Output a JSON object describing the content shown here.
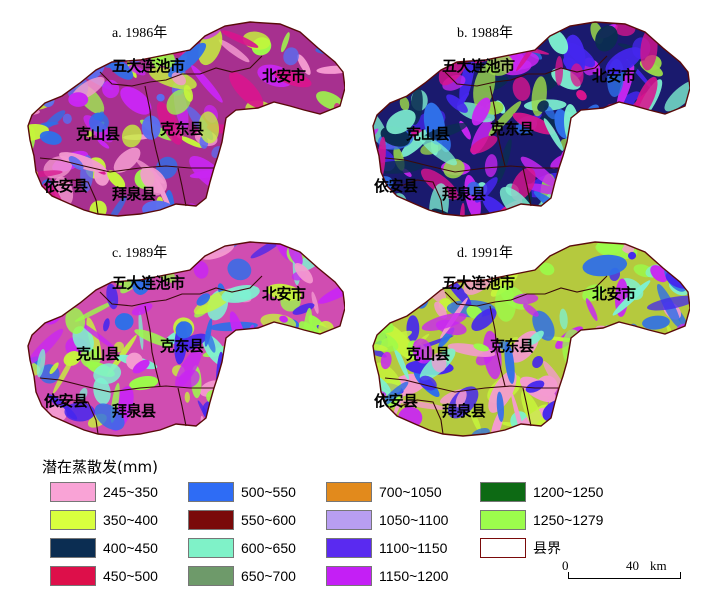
{
  "panels": [
    {
      "title": "a. 1986年",
      "base": "#a7308f",
      "patches": [
        "#5b6df0",
        "#c926f2",
        "#c6f53b",
        "#f49ad0",
        "#2f6fe8",
        "#d8158e",
        "#9dfb4a"
      ]
    },
    {
      "title": "b. 1988年",
      "base": "#1a1a6e",
      "patches": [
        "#0b2d52",
        "#7ef1d0",
        "#c926f2",
        "#4527ee",
        "#2f6fe8",
        "#9bd94a",
        "#d8158e"
      ]
    },
    {
      "title": "c. 1989年",
      "base": "#d04db1",
      "patches": [
        "#f49ad0",
        "#c926f2",
        "#2f6fe8",
        "#c6f53b",
        "#7ef1d0",
        "#9bfb4a",
        "#4527ee"
      ]
    },
    {
      "title": "d. 1991年",
      "base": "#b5c93e",
      "patches": [
        "#c6f53b",
        "#9bfb4a",
        "#c926f2",
        "#4527ee",
        "#2f6fe8",
        "#7ef1d0",
        "#f49ad0"
      ]
    }
  ],
  "county_labels": {
    "wudalianchi": "五大连池市",
    "beian": "北安市",
    "keshan": "克山县",
    "kedong": "克东县",
    "yian": "依安县",
    "baiquan": "拜泉县"
  },
  "legend": {
    "title": "潜在蒸散发(mm)",
    "items": [
      {
        "label": "245~350",
        "color": "#f9a3d6"
      },
      {
        "label": "350~400",
        "color": "#d9ff3e"
      },
      {
        "label": "400~450",
        "color": "#0b2d52"
      },
      {
        "label": "450~500",
        "color": "#dd0f4a"
      },
      {
        "label": "500~550",
        "color": "#2e6cf5"
      },
      {
        "label": "550~600",
        "color": "#7a0a0a"
      },
      {
        "label": "600~650",
        "color": "#7ff2c8"
      },
      {
        "label": "650~700",
        "color": "#6e9a6a"
      },
      {
        "label": "700~1050",
        "color": "#e28a1c"
      },
      {
        "label": "1050~1100",
        "color": "#b89ef2"
      },
      {
        "label": "1100~1150",
        "color": "#5a2af0"
      },
      {
        "label": "1150~1200",
        "color": "#c41ff5"
      },
      {
        "label": "1200~1250",
        "color": "#0d6a14"
      },
      {
        "label": "1250~1279",
        "color": "#9cfc4c"
      },
      {
        "label": "县界",
        "color": "#ffffff"
      }
    ]
  },
  "scale": {
    "zero": "0",
    "forty": "40",
    "unit": "km"
  }
}
